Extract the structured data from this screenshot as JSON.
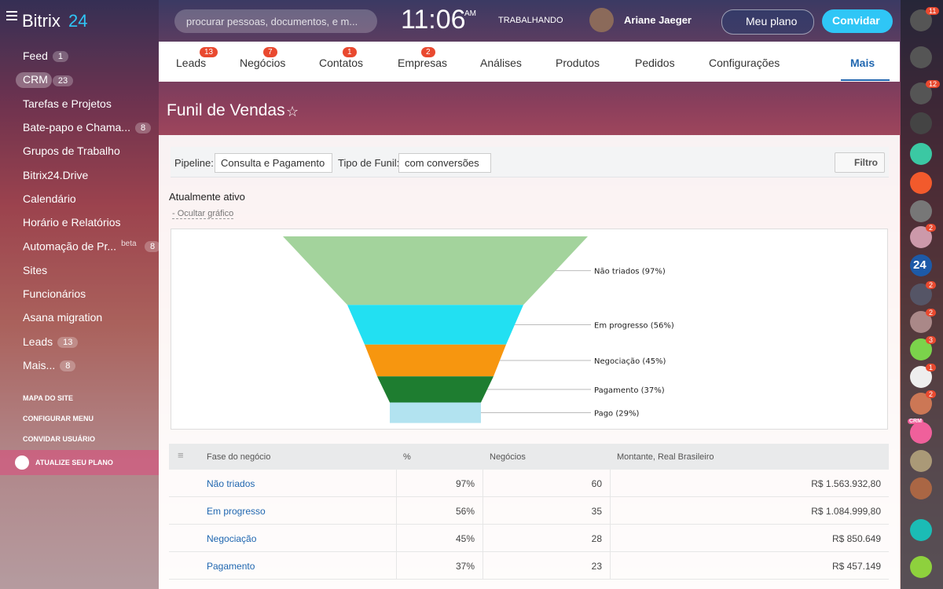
{
  "header": {
    "logo": "Bitrix",
    "logo_num": "24",
    "search_placeholder": "procurar pessoas, documentos, e m...",
    "clock": "11:06",
    "clock_suffix": "AM",
    "status": "TRABALHANDO",
    "user": "Ariane Jaeger",
    "plan_button": "Meu plano",
    "invite_button": "Convidar"
  },
  "sidebar": {
    "items": [
      {
        "label": "Feed",
        "badge": 1
      },
      {
        "label": "CRM",
        "badge": 23,
        "active": true
      },
      {
        "label": "Tarefas e Projetos"
      },
      {
        "label": "Bate-papo e Chama...",
        "badge": 8
      },
      {
        "label": "Grupos de Trabalho"
      },
      {
        "label": "Bitrix24.Drive"
      },
      {
        "label": "Calendário"
      },
      {
        "label": "Horário e Relatórios"
      },
      {
        "label": "Automação de Pr...",
        "tag": "beta",
        "badge": 8
      },
      {
        "label": "Sites"
      },
      {
        "label": "Funcionários"
      },
      {
        "label": "Asana migration"
      },
      {
        "label": "Leads",
        "badge": 13
      },
      {
        "label": "Mais...",
        "badge": 8
      }
    ],
    "links": [
      "MAPA DO SITE",
      "CONFIGURAR MENU",
      "CONVIDAR USUÁRIO"
    ],
    "upgrade": "ATUALIZE SEU PLANO"
  },
  "tabs": [
    {
      "label": "Leads",
      "badge": 13
    },
    {
      "label": "Negócios",
      "badge": 7
    },
    {
      "label": "Contatos",
      "badge": 1
    },
    {
      "label": "Empresas",
      "badge": 2
    },
    {
      "label": "Análises"
    },
    {
      "label": "Produtos"
    },
    {
      "label": "Pedidos"
    },
    {
      "label": "Configurações"
    },
    {
      "label": "Mais",
      "active": true
    }
  ],
  "page_title": "Funil de Vendas",
  "filters": {
    "pipeline_label": "Pipeline:",
    "pipeline_value": "Consulta e Pagamento",
    "type_label": "Tipo de Funil:",
    "type_value": "com conversões",
    "filter_button": "Filtro"
  },
  "section": {
    "title": "Atualmente ativo",
    "toggle": "- Ocultar gráfico"
  },
  "chart_data": {
    "type": "funnel",
    "categories": [
      "Não triados",
      "Em progresso",
      "Negociação",
      "Pagamento",
      "Pago"
    ],
    "values": [
      97,
      56,
      45,
      37,
      29
    ],
    "value_labels": [
      "Não triados (97%)",
      "Em progresso (56%)",
      "Negociação (45%)",
      "Pagamento (37%)",
      "Pago (29%)"
    ],
    "colors": [
      "#a3d39c",
      "#22e0f2",
      "#f7960f",
      "#1e7d30",
      "#b2e3f0"
    ]
  },
  "table": {
    "columns": [
      "Fase do negócio",
      "%",
      "Negócios",
      "Montante, Real Brasileiro"
    ],
    "rows": [
      [
        "Não triados",
        "97%",
        "60",
        "R$ 1.563.932,80"
      ],
      [
        "Em progresso",
        "56%",
        "35",
        "R$ 1.084.999,80"
      ],
      [
        "Negociação",
        "45%",
        "28",
        "R$ 850.649"
      ],
      [
        "Pagamento",
        "37%",
        "23",
        "R$ 457.149"
      ]
    ]
  },
  "rightbar": {
    "badges": [
      11,
      12,
      2,
      2,
      2,
      3,
      1,
      2
    ],
    "texts": [
      "24",
      "CRM"
    ]
  }
}
